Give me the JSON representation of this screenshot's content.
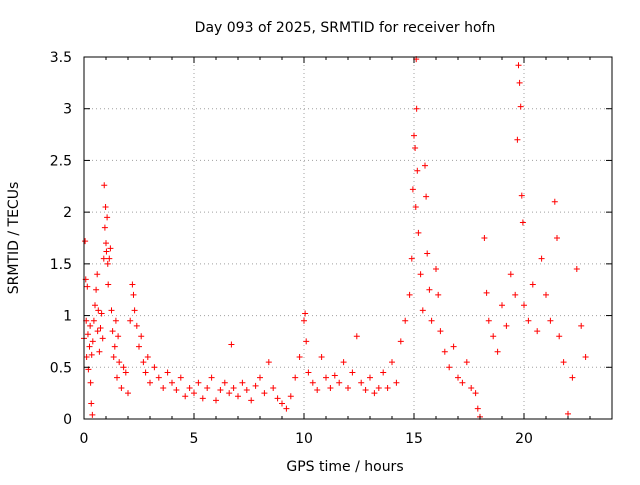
{
  "chart_data": {
    "type": "scatter",
    "title": "Day 093 of 2025, SRMTID for receiver hofn",
    "xlabel": "GPS time / hours",
    "ylabel": "SRMTID / TECUs",
    "xlim": [
      0,
      24
    ],
    "ylim": [
      0,
      3.5
    ],
    "x_ticks": [
      0,
      5,
      10,
      15,
      20
    ],
    "x_tick_labels": [
      "0",
      "5",
      "10",
      "15",
      "20"
    ],
    "y_ticks": [
      0,
      0.5,
      1,
      1.5,
      2,
      2.5,
      3,
      3.5
    ],
    "y_tick_labels": [
      "0",
      "0.5",
      "1",
      "1.5",
      "2",
      "2.5",
      "3",
      "3.5"
    ],
    "grid": true,
    "marker": "plus",
    "color": "#ff0000",
    "series": [
      {
        "name": "SRMTID",
        "points": [
          [
            0.0,
            0.78
          ],
          [
            0.05,
            1.72
          ],
          [
            0.08,
            1.35
          ],
          [
            0.1,
            0.95
          ],
          [
            0.12,
            0.6
          ],
          [
            0.15,
            1.28
          ],
          [
            0.18,
            0.82
          ],
          [
            0.2,
            0.48
          ],
          [
            0.25,
            0.7
          ],
          [
            0.28,
            0.9
          ],
          [
            0.3,
            0.35
          ],
          [
            0.33,
            0.15
          ],
          [
            0.35,
            0.62
          ],
          [
            0.38,
            0.04
          ],
          [
            0.4,
            0.75
          ],
          [
            0.45,
            0.95
          ],
          [
            0.5,
            1.1
          ],
          [
            0.55,
            1.25
          ],
          [
            0.6,
            1.4
          ],
          [
            0.62,
            0.85
          ],
          [
            0.65,
            1.05
          ],
          [
            0.7,
            0.65
          ],
          [
            0.75,
            0.88
          ],
          [
            0.8,
            1.02
          ],
          [
            0.85,
            0.78
          ],
          [
            0.9,
            1.55
          ],
          [
            0.92,
            2.26
          ],
          [
            0.95,
            1.85
          ],
          [
            0.98,
            2.05
          ],
          [
            1.0,
            1.7
          ],
          [
            1.02,
            1.62
          ],
          [
            1.05,
            1.95
          ],
          [
            1.08,
            1.5
          ],
          [
            1.1,
            1.3
          ],
          [
            1.15,
            1.55
          ],
          [
            1.2,
            1.65
          ],
          [
            1.25,
            1.05
          ],
          [
            1.3,
            0.85
          ],
          [
            1.35,
            0.6
          ],
          [
            1.4,
            0.7
          ],
          [
            1.45,
            0.95
          ],
          [
            1.5,
            0.4
          ],
          [
            1.55,
            0.8
          ],
          [
            1.6,
            0.55
          ],
          [
            1.7,
            0.3
          ],
          [
            1.8,
            0.5
          ],
          [
            1.9,
            0.45
          ],
          [
            2.0,
            0.25
          ],
          [
            2.1,
            0.95
          ],
          [
            2.2,
            1.3
          ],
          [
            2.25,
            1.2
          ],
          [
            2.3,
            1.05
          ],
          [
            2.4,
            0.9
          ],
          [
            2.5,
            0.7
          ],
          [
            2.6,
            0.8
          ],
          [
            2.7,
            0.55
          ],
          [
            2.8,
            0.45
          ],
          [
            2.9,
            0.6
          ],
          [
            3.0,
            0.35
          ],
          [
            3.2,
            0.5
          ],
          [
            3.4,
            0.4
          ],
          [
            3.6,
            0.3
          ],
          [
            3.8,
            0.45
          ],
          [
            4.0,
            0.35
          ],
          [
            4.2,
            0.28
          ],
          [
            4.4,
            0.4
          ],
          [
            4.6,
            0.22
          ],
          [
            4.8,
            0.3
          ],
          [
            5.0,
            0.25
          ],
          [
            5.2,
            0.35
          ],
          [
            5.4,
            0.2
          ],
          [
            5.6,
            0.3
          ],
          [
            5.8,
            0.4
          ],
          [
            6.0,
            0.18
          ],
          [
            6.2,
            0.28
          ],
          [
            6.4,
            0.35
          ],
          [
            6.6,
            0.25
          ],
          [
            6.7,
            0.72
          ],
          [
            6.8,
            0.3
          ],
          [
            7.0,
            0.22
          ],
          [
            7.2,
            0.35
          ],
          [
            7.4,
            0.28
          ],
          [
            7.6,
            0.18
          ],
          [
            7.8,
            0.32
          ],
          [
            8.0,
            0.4
          ],
          [
            8.2,
            0.25
          ],
          [
            8.4,
            0.55
          ],
          [
            8.6,
            0.3
          ],
          [
            8.8,
            0.2
          ],
          [
            9.0,
            0.15
          ],
          [
            9.2,
            0.1
          ],
          [
            9.4,
            0.22
          ],
          [
            9.6,
            0.4
          ],
          [
            9.8,
            0.6
          ],
          [
            10.0,
            0.95
          ],
          [
            10.05,
            1.02
          ],
          [
            10.1,
            0.75
          ],
          [
            10.2,
            0.45
          ],
          [
            10.4,
            0.35
          ],
          [
            10.6,
            0.28
          ],
          [
            10.8,
            0.6
          ],
          [
            11.0,
            0.4
          ],
          [
            11.2,
            0.3
          ],
          [
            11.4,
            0.42
          ],
          [
            11.6,
            0.35
          ],
          [
            11.8,
            0.55
          ],
          [
            12.0,
            0.3
          ],
          [
            12.2,
            0.45
          ],
          [
            12.4,
            0.8
          ],
          [
            12.6,
            0.35
          ],
          [
            12.8,
            0.28
          ],
          [
            13.0,
            0.4
          ],
          [
            13.2,
            0.25
          ],
          [
            13.4,
            0.3
          ],
          [
            13.6,
            0.45
          ],
          [
            13.8,
            0.3
          ],
          [
            14.0,
            0.55
          ],
          [
            14.2,
            0.35
          ],
          [
            14.4,
            0.75
          ],
          [
            14.6,
            0.95
          ],
          [
            14.8,
            1.2
          ],
          [
            14.9,
            1.55
          ],
          [
            14.95,
            2.22
          ],
          [
            15.0,
            2.74
          ],
          [
            15.05,
            2.62
          ],
          [
            15.08,
            2.05
          ],
          [
            15.1,
            3.48
          ],
          [
            15.12,
            3.0
          ],
          [
            15.15,
            2.4
          ],
          [
            15.2,
            1.8
          ],
          [
            15.3,
            1.4
          ],
          [
            15.4,
            1.05
          ],
          [
            15.5,
            2.45
          ],
          [
            15.55,
            2.15
          ],
          [
            15.6,
            1.6
          ],
          [
            15.7,
            1.25
          ],
          [
            15.8,
            0.95
          ],
          [
            16.0,
            1.45
          ],
          [
            16.1,
            1.2
          ],
          [
            16.2,
            0.85
          ],
          [
            16.4,
            0.65
          ],
          [
            16.6,
            0.5
          ],
          [
            16.8,
            0.7
          ],
          [
            17.0,
            0.4
          ],
          [
            17.2,
            0.35
          ],
          [
            17.4,
            0.55
          ],
          [
            17.6,
            0.3
          ],
          [
            17.8,
            0.25
          ],
          [
            17.9,
            0.1
          ],
          [
            18.0,
            0.02
          ],
          [
            18.2,
            1.75
          ],
          [
            18.3,
            1.22
          ],
          [
            18.4,
            0.95
          ],
          [
            18.6,
            0.8
          ],
          [
            18.8,
            0.65
          ],
          [
            19.0,
            1.1
          ],
          [
            19.2,
            0.9
          ],
          [
            19.4,
            1.4
          ],
          [
            19.6,
            1.2
          ],
          [
            19.7,
            2.7
          ],
          [
            19.75,
            3.42
          ],
          [
            19.8,
            3.25
          ],
          [
            19.85,
            3.02
          ],
          [
            19.9,
            2.16
          ],
          [
            19.95,
            1.9
          ],
          [
            20.0,
            1.1
          ],
          [
            20.2,
            0.95
          ],
          [
            20.4,
            1.3
          ],
          [
            20.6,
            0.85
          ],
          [
            20.8,
            1.55
          ],
          [
            21.0,
            1.2
          ],
          [
            21.2,
            0.95
          ],
          [
            21.4,
            2.1
          ],
          [
            21.5,
            1.75
          ],
          [
            21.6,
            0.8
          ],
          [
            21.8,
            0.55
          ],
          [
            22.0,
            0.05
          ],
          [
            22.2,
            0.4
          ],
          [
            22.4,
            1.45
          ],
          [
            22.6,
            0.9
          ],
          [
            22.8,
            0.6
          ]
        ]
      }
    ]
  }
}
